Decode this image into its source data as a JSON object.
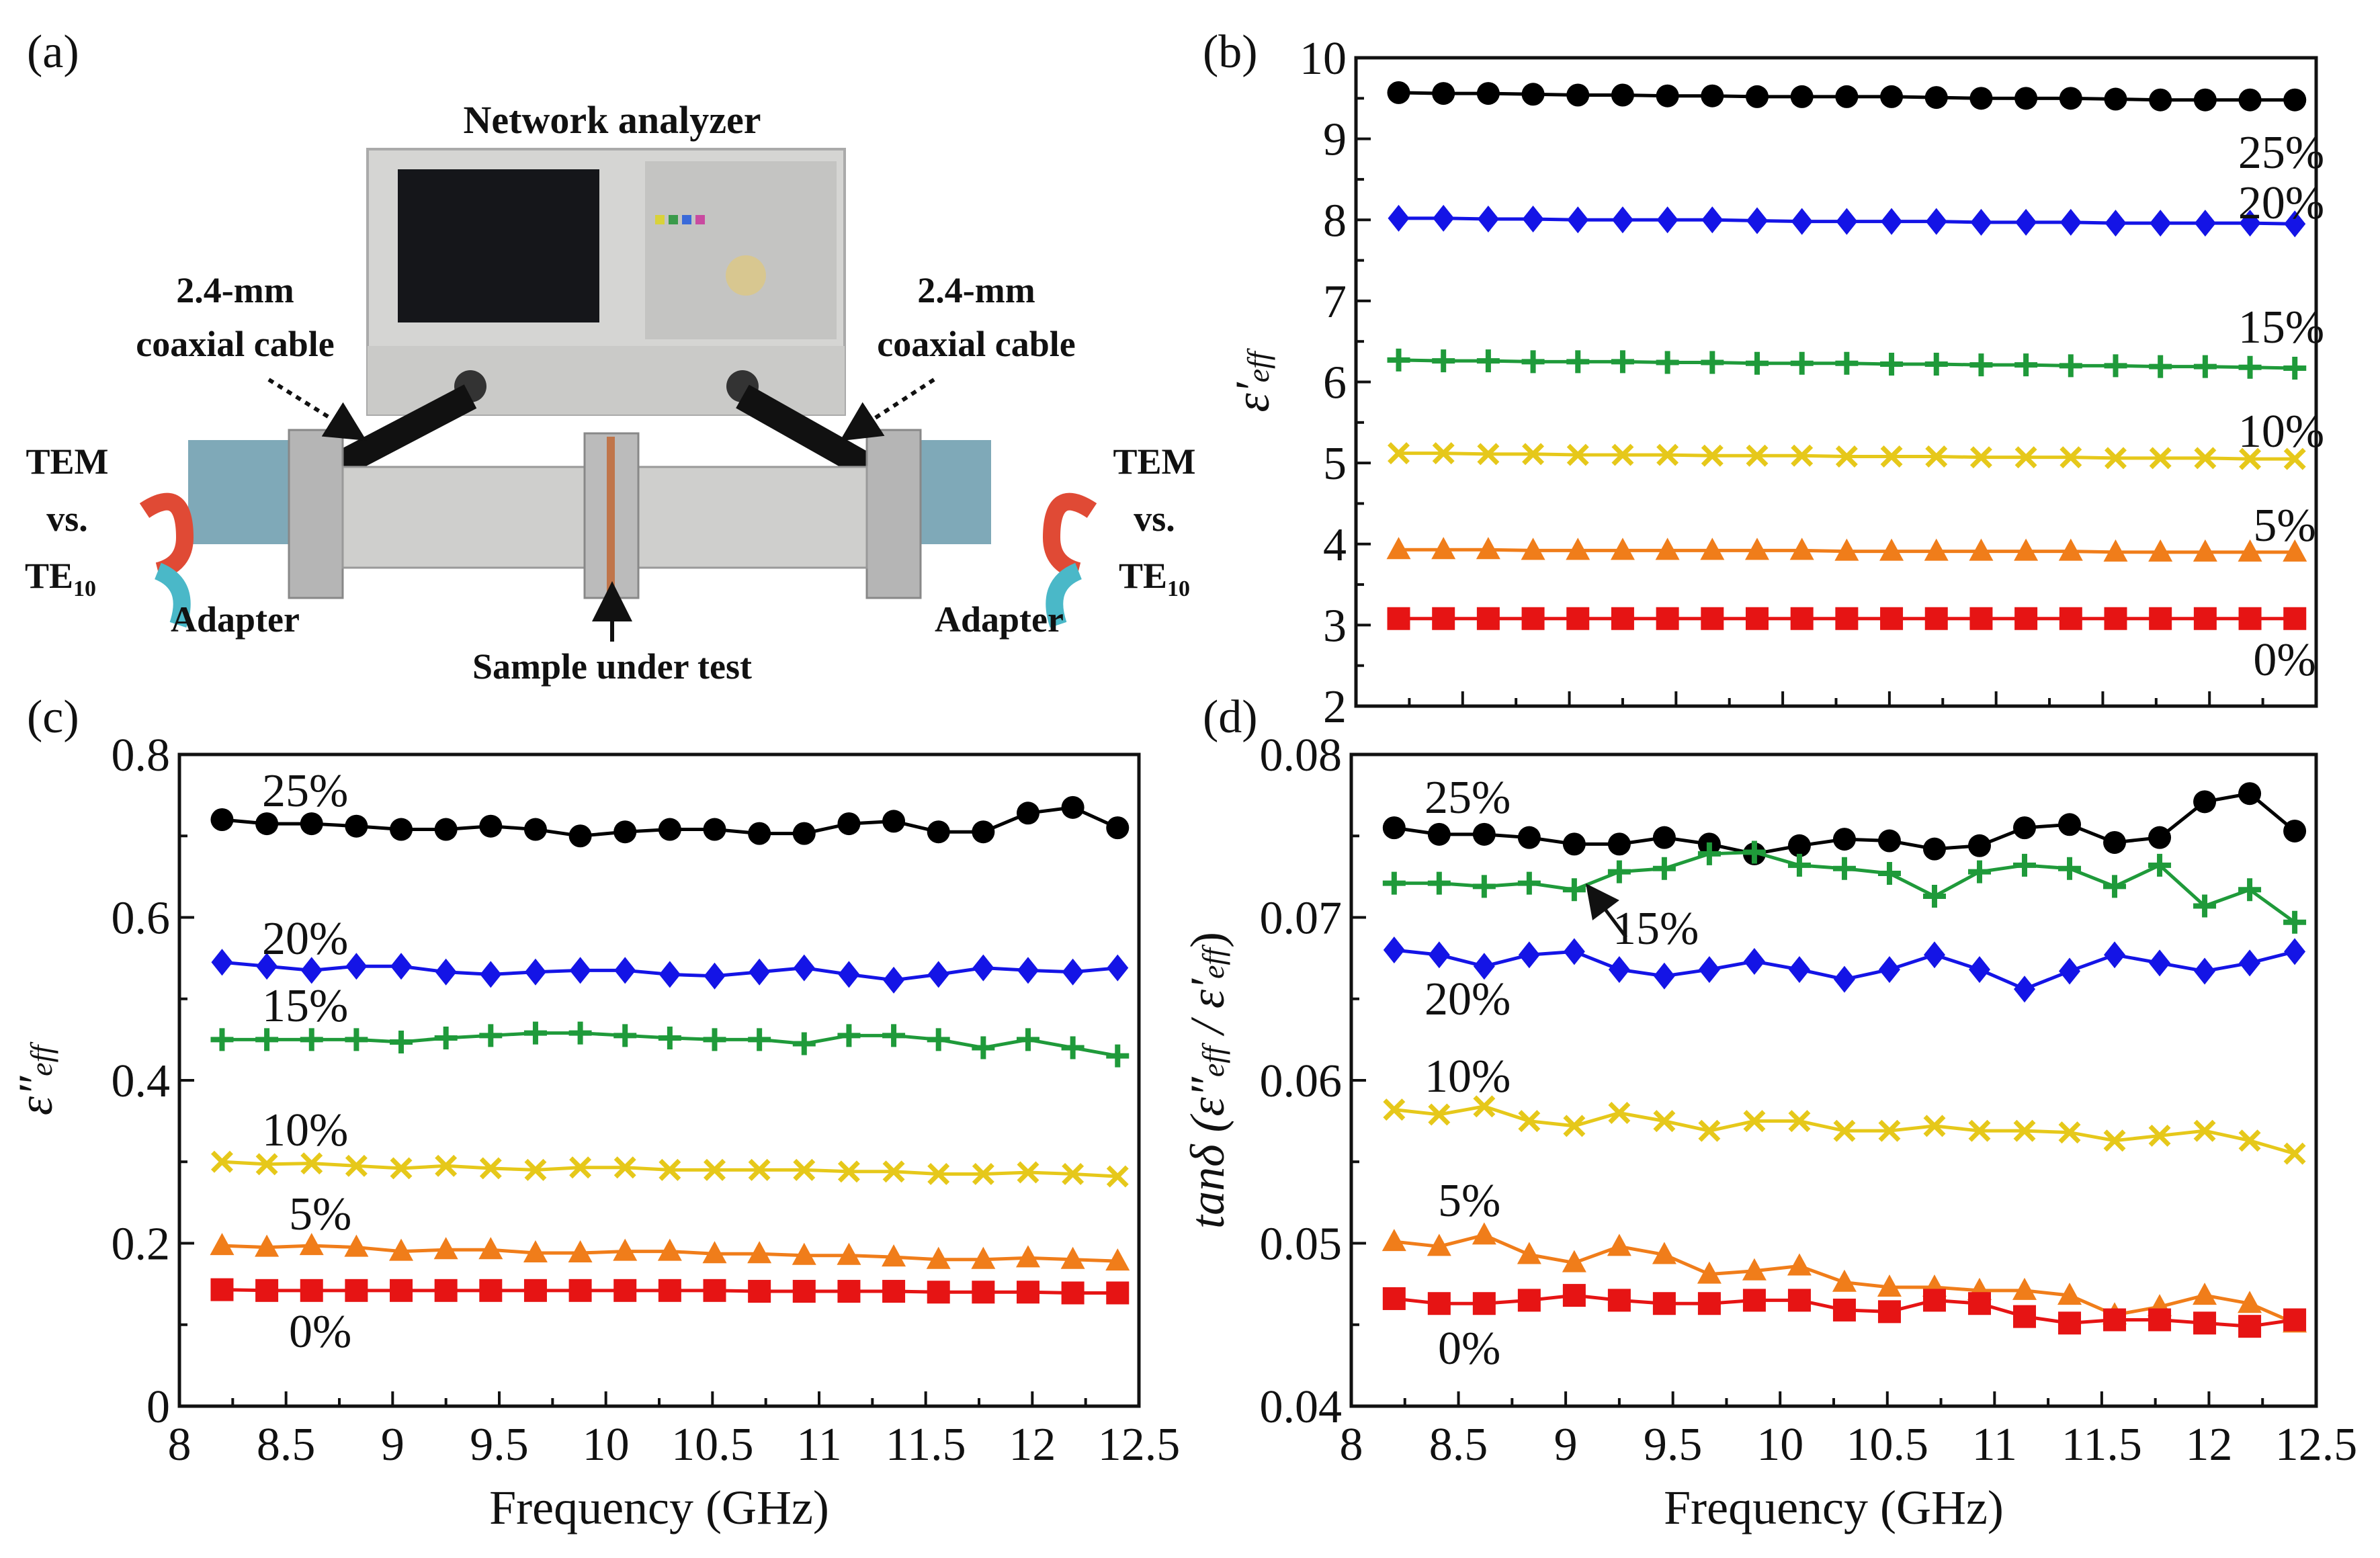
{
  "panel_a": {
    "label": "(a)",
    "network_analyzer": "Network analyzer",
    "cable_left": [
      "2.4-mm",
      "coaxial cable"
    ],
    "cable_right": [
      "2.4-mm",
      "coaxial cable"
    ],
    "mode_left": {
      "tem": "TEM",
      "vs": "vs.",
      "te": "TE",
      "te_sub": "10"
    },
    "mode_right": {
      "tem": "TEM",
      "vs": "vs.",
      "te": "TE",
      "te_sub": "10"
    },
    "adapter_left": "Adapter",
    "adapter_right": "Adapter",
    "sample": "Sample under test"
  },
  "chart_data": [
    {
      "panel": "(b)",
      "type": "line",
      "xlabel": "",
      "ylabel": "ε′eff",
      "ylabel_main": "ε′",
      "ylabel_sub": "eff",
      "xlim": [
        8,
        12.5
      ],
      "ylim": [
        2,
        10
      ],
      "yticks": [
        "2",
        "3",
        "4",
        "5",
        "6",
        "7",
        "8",
        "9",
        "10"
      ],
      "xticks": [],
      "x": [
        8.2,
        8.41,
        8.62,
        8.83,
        9.04,
        9.25,
        9.46,
        9.67,
        9.88,
        10.09,
        10.3,
        10.51,
        10.72,
        10.93,
        11.14,
        11.35,
        11.56,
        11.77,
        11.98,
        12.19,
        12.4
      ],
      "series": [
        {
          "name": "25%",
          "color": "#000000",
          "marker": "circle",
          "values": [
            9.57,
            9.56,
            9.56,
            9.55,
            9.54,
            9.54,
            9.53,
            9.53,
            9.52,
            9.52,
            9.52,
            9.52,
            9.51,
            9.5,
            9.5,
            9.5,
            9.49,
            9.48,
            9.48,
            9.48,
            9.48
          ]
        },
        {
          "name": "20%",
          "color": "#1414e6",
          "marker": "diamond",
          "values": [
            8.02,
            8.02,
            8.01,
            8.01,
            8.0,
            8.0,
            8.0,
            8.0,
            7.99,
            7.98,
            7.98,
            7.98,
            7.98,
            7.97,
            7.97,
            7.97,
            7.96,
            7.96,
            7.96,
            7.96,
            7.95
          ]
        },
        {
          "name": "15%",
          "color": "#1f9a3a",
          "marker": "plus",
          "values": [
            6.27,
            6.26,
            6.26,
            6.25,
            6.25,
            6.25,
            6.24,
            6.24,
            6.23,
            6.23,
            6.23,
            6.22,
            6.22,
            6.21,
            6.21,
            6.2,
            6.2,
            6.19,
            6.19,
            6.18,
            6.17
          ]
        },
        {
          "name": "10%",
          "color": "#e6c81a",
          "marker": "x",
          "values": [
            5.12,
            5.12,
            5.11,
            5.11,
            5.1,
            5.1,
            5.1,
            5.09,
            5.09,
            5.09,
            5.08,
            5.08,
            5.08,
            5.07,
            5.07,
            5.07,
            5.06,
            5.06,
            5.06,
            5.05,
            5.05
          ]
        },
        {
          "name": "5%",
          "color": "#f07d1a",
          "marker": "triangle",
          "values": [
            3.93,
            3.93,
            3.93,
            3.92,
            3.92,
            3.92,
            3.92,
            3.92,
            3.92,
            3.92,
            3.91,
            3.91,
            3.91,
            3.91,
            3.91,
            3.91,
            3.9,
            3.9,
            3.9,
            3.9,
            3.9
          ]
        },
        {
          "name": "0%",
          "color": "#e61414",
          "marker": "square",
          "values": [
            3.08,
            3.08,
            3.08,
            3.08,
            3.08,
            3.08,
            3.08,
            3.08,
            3.08,
            3.08,
            3.08,
            3.08,
            3.08,
            3.08,
            3.08,
            3.08,
            3.08,
            3.08,
            3.08,
            3.08,
            3.08
          ]
        }
      ]
    },
    {
      "panel": "(c)",
      "type": "line",
      "xlabel": "Frequency (GHz)",
      "ylabel": "ε″eff",
      "ylabel_main": "ε″",
      "ylabel_sub": "eff",
      "xlim": [
        8,
        12.5
      ],
      "ylim": [
        0,
        0.8
      ],
      "yticks": [
        "0",
        "0.2",
        "0.4",
        "0.6",
        "0.8"
      ],
      "xticks": [
        "8",
        "8.5",
        "9",
        "9.5",
        "10",
        "10.5",
        "11",
        "11.5",
        "12",
        "12.5"
      ],
      "x": [
        8.2,
        8.41,
        8.62,
        8.83,
        9.04,
        9.25,
        9.46,
        9.67,
        9.88,
        10.09,
        10.3,
        10.51,
        10.72,
        10.93,
        11.14,
        11.35,
        11.56,
        11.77,
        11.98,
        12.19,
        12.4
      ],
      "series": [
        {
          "name": "25%",
          "color": "#000000",
          "marker": "circle",
          "values": [
            0.72,
            0.715,
            0.715,
            0.712,
            0.708,
            0.708,
            0.712,
            0.708,
            0.7,
            0.705,
            0.708,
            0.708,
            0.703,
            0.703,
            0.715,
            0.718,
            0.705,
            0.705,
            0.728,
            0.735,
            0.71
          ]
        },
        {
          "name": "20%",
          "color": "#1414e6",
          "marker": "diamond",
          "values": [
            0.545,
            0.54,
            0.535,
            0.54,
            0.54,
            0.533,
            0.53,
            0.533,
            0.535,
            0.535,
            0.53,
            0.528,
            0.533,
            0.538,
            0.53,
            0.523,
            0.53,
            0.538,
            0.535,
            0.533,
            0.538
          ]
        },
        {
          "name": "15%",
          "color": "#1f9a3a",
          "marker": "plus",
          "values": [
            0.45,
            0.45,
            0.45,
            0.45,
            0.447,
            0.452,
            0.455,
            0.458,
            0.458,
            0.455,
            0.452,
            0.45,
            0.45,
            0.445,
            0.455,
            0.455,
            0.45,
            0.44,
            0.45,
            0.44,
            0.43
          ]
        },
        {
          "name": "10%",
          "color": "#e6c81a",
          "marker": "x",
          "values": [
            0.3,
            0.297,
            0.298,
            0.295,
            0.292,
            0.295,
            0.292,
            0.29,
            0.293,
            0.293,
            0.29,
            0.29,
            0.29,
            0.29,
            0.288,
            0.288,
            0.285,
            0.285,
            0.287,
            0.285,
            0.282
          ]
        },
        {
          "name": "5%",
          "color": "#f07d1a",
          "marker": "triangle",
          "values": [
            0.197,
            0.195,
            0.197,
            0.195,
            0.19,
            0.192,
            0.192,
            0.188,
            0.188,
            0.19,
            0.19,
            0.187,
            0.187,
            0.185,
            0.185,
            0.183,
            0.18,
            0.18,
            0.182,
            0.18,
            0.178
          ]
        },
        {
          "name": "0%",
          "color": "#e61414",
          "marker": "square",
          "values": [
            0.143,
            0.142,
            0.142,
            0.142,
            0.142,
            0.142,
            0.142,
            0.142,
            0.142,
            0.142,
            0.142,
            0.142,
            0.141,
            0.141,
            0.141,
            0.141,
            0.14,
            0.14,
            0.14,
            0.139,
            0.139
          ]
        }
      ]
    },
    {
      "panel": "(d)",
      "type": "line",
      "xlabel": "Frequency (GHz)",
      "ylabel": "tanδ (ε″eff / ε′eff)",
      "ylabel_main": "tanδ (ε″",
      "ylabel_sub": "eff",
      "ylabel_mid": " / ε′",
      "ylabel_end": ")",
      "xlim": [
        8,
        12.5
      ],
      "ylim": [
        0.04,
        0.08
      ],
      "yticks": [
        "0.04",
        "0.05",
        "0.06",
        "0.07",
        "0.08"
      ],
      "xticks": [
        "8",
        "8.5",
        "9",
        "9.5",
        "10",
        "10.5",
        "11",
        "11.5",
        "12",
        "12.5"
      ],
      "x": [
        8.2,
        8.41,
        8.62,
        8.83,
        9.04,
        9.25,
        9.46,
        9.67,
        9.88,
        10.09,
        10.3,
        10.51,
        10.72,
        10.93,
        11.14,
        11.35,
        11.56,
        11.77,
        11.98,
        12.19,
        12.4
      ],
      "series": [
        {
          "name": "25%",
          "color": "#000000",
          "marker": "circle",
          "values": [
            0.0755,
            0.0751,
            0.0751,
            0.0749,
            0.0745,
            0.0745,
            0.0749,
            0.0745,
            0.0739,
            0.0744,
            0.0748,
            0.0747,
            0.0742,
            0.0744,
            0.0755,
            0.0757,
            0.0746,
            0.0749,
            0.0771,
            0.0776,
            0.0753
          ]
        },
        {
          "name": "15%",
          "color": "#1f9a3a",
          "marker": "plus",
          "values": [
            0.0721,
            0.0721,
            0.0719,
            0.0721,
            0.0717,
            0.0728,
            0.073,
            0.0739,
            0.074,
            0.0732,
            0.073,
            0.0727,
            0.0713,
            0.0728,
            0.0732,
            0.073,
            0.0719,
            0.0732,
            0.0707,
            0.0717,
            0.0697
          ]
        },
        {
          "name": "20%",
          "color": "#1414e6",
          "marker": "diamond",
          "values": [
            0.068,
            0.0677,
            0.067,
            0.0677,
            0.0679,
            0.0668,
            0.0664,
            0.0668,
            0.0673,
            0.0668,
            0.0662,
            0.0668,
            0.0677,
            0.0668,
            0.0656,
            0.0667,
            0.0677,
            0.0672,
            0.0667,
            0.0672,
            0.0679
          ]
        },
        {
          "name": "10%",
          "color": "#e6c81a",
          "marker": "x",
          "values": [
            0.0582,
            0.0579,
            0.0584,
            0.0575,
            0.0572,
            0.058,
            0.0575,
            0.0569,
            0.0575,
            0.0575,
            0.0569,
            0.0569,
            0.0572,
            0.0569,
            0.0569,
            0.0568,
            0.0563,
            0.0566,
            0.0569,
            0.0563,
            0.0555
          ]
        },
        {
          "name": "5%",
          "color": "#f07d1a",
          "marker": "triangle",
          "values": [
            0.0501,
            0.0498,
            0.0505,
            0.0493,
            0.0488,
            0.0498,
            0.0493,
            0.0481,
            0.0483,
            0.0486,
            0.0476,
            0.0473,
            0.0473,
            0.0471,
            0.0471,
            0.0468,
            0.0456,
            0.0461,
            0.0468,
            0.0463,
            0.0451
          ]
        },
        {
          "name": "0%",
          "color": "#e61414",
          "marker": "square",
          "values": [
            0.0466,
            0.0463,
            0.0463,
            0.0465,
            0.0468,
            0.0465,
            0.0463,
            0.0463,
            0.0465,
            0.0465,
            0.0459,
            0.0458,
            0.0465,
            0.0463,
            0.0455,
            0.0451,
            0.0453,
            0.0453,
            0.0451,
            0.0449,
            0.0453
          ]
        }
      ]
    }
  ]
}
